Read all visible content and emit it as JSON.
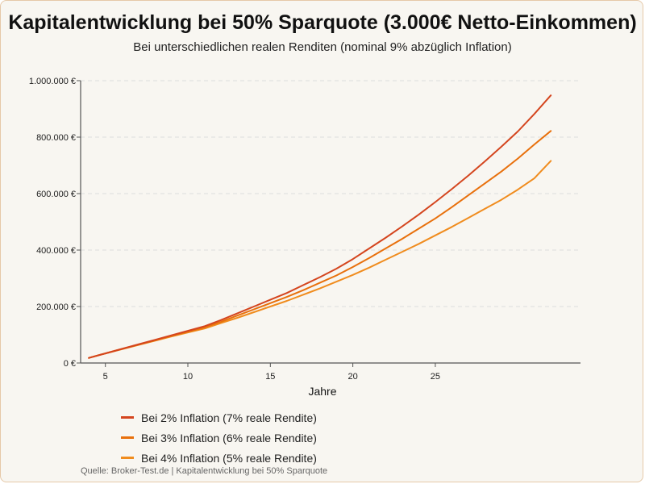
{
  "chart_data": {
    "type": "line",
    "title": "Kapitalentwicklung bei 50% Sparquote (3.000€ Netto-Einkommen)",
    "subtitle": "Bei unterschiedlichen realen Renditen (nominal 9% abzüglich Inflation)",
    "xlabel": "Jahre",
    "ylabel": "",
    "x": [
      4,
      5,
      6,
      7,
      8,
      9,
      10,
      11,
      12,
      13,
      14,
      15,
      16,
      17,
      18,
      19,
      20,
      21,
      22,
      23,
      24,
      25,
      26,
      27,
      28,
      29,
      30,
      31,
      32
    ],
    "xlim": [
      3.5,
      33.8
    ],
    "ylim": [
      0,
      1000000
    ],
    "x_ticks": [
      5,
      10,
      15,
      20,
      25
    ],
    "x_tick_labels": [
      "5",
      "10",
      "15",
      "20",
      "25"
    ],
    "y_ticks": [
      0,
      200000,
      400000,
      600000,
      800000,
      1000000
    ],
    "y_tick_labels": [
      "0 €",
      "200.000 €",
      "400.000 €",
      "600.000 €",
      "800.000 €",
      "1.000.000 €"
    ],
    "grid": "horizontal-dashed",
    "legend_position": "bottom-left",
    "series": [
      {
        "name": "Bei 2% Inflation (7% reale Rendite)",
        "color": "#d4451e",
        "values": [
          18000,
          34000,
          50000,
          66000,
          82000,
          98000,
          114000,
          130000,
          152000,
          176000,
          200000,
          224000,
          248000,
          276000,
          304000,
          334000,
          368000,
          406000,
          444000,
          484000,
          526000,
          570000,
          616000,
          664000,
          714000,
          766000,
          820000,
          882000,
          948000
        ]
      },
      {
        "name": "Bei 3% Inflation (6% reale Rendite)",
        "color": "#e8700c",
        "values": [
          18000,
          34000,
          50000,
          65000,
          80000,
          96000,
          111000,
          126000,
          146000,
          168000,
          190000,
          212000,
          234000,
          258000,
          284000,
          310000,
          340000,
          372000,
          406000,
          440000,
          476000,
          512000,
          552000,
          594000,
          636000,
          678000,
          724000,
          774000,
          822000
        ]
      },
      {
        "name": "Bei 4% Inflation (5% reale Rendite)",
        "color": "#f08c1e",
        "values": [
          18000,
          34000,
          49000,
          64000,
          79000,
          94000,
          108000,
          122000,
          141000,
          160000,
          180000,
          200000,
          220000,
          242000,
          264000,
          288000,
          312000,
          338000,
          366000,
          394000,
          422000,
          452000,
          482000,
          514000,
          546000,
          578000,
          614000,
          654000,
          716000
        ]
      }
    ]
  },
  "source_text": "Quelle: Broker-Test.de | Kapitalentwicklung bei 50% Sparquote",
  "colors": {
    "background": "#f8f6f1",
    "border": "#e6c9a8",
    "axis": "#555555",
    "grid": "#dddddd"
  }
}
